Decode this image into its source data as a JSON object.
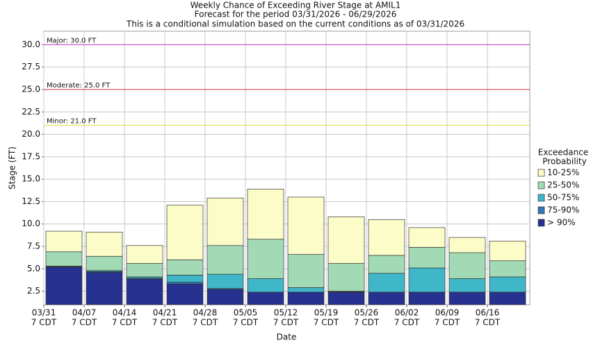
{
  "chart_data": {
    "type": "floating-stacked-bar",
    "title": "Weekly Chance of Exceeding River Stage at AMIL1",
    "subtitle": "Forecast for the period 03/31/2026 - 06/29/2026",
    "note": "This is a conditional simulation based on the current conditions as of 03/31/2026",
    "x_label": "Date",
    "y_label": "Stage (FT)",
    "categories": [
      "03/31",
      "04/07",
      "04/14",
      "04/21",
      "04/28",
      "05/05",
      "05/12",
      "05/19",
      "05/26",
      "06/02",
      "06/09",
      "06/16"
    ],
    "category_sublabel": "7 CDT",
    "legend_title": [
      "Exceedance",
      "Probability"
    ],
    "series": [
      {
        "name": "> 90%",
        "color": "#27318f",
        "values": [
          5.2,
          4.6,
          3.85,
          3.3,
          2.7,
          2.4,
          2.4,
          2.4,
          2.4,
          2.4,
          2.4,
          2.4
        ]
      },
      {
        "name": "75-90%",
        "color": "#2f78b5",
        "values": [
          5.25,
          4.7,
          3.95,
          3.5,
          2.8,
          2.4,
          2.4,
          2.45,
          2.4,
          2.4,
          2.4,
          2.4
        ]
      },
      {
        "name": "50-75%",
        "color": "#40b7c8",
        "values": [
          5.3,
          4.8,
          4.1,
          4.3,
          4.4,
          3.9,
          2.9,
          2.5,
          4.5,
          5.1,
          3.9,
          4.1
        ]
      },
      {
        "name": "25-50%",
        "color": "#a2dab5",
        "values": [
          6.9,
          6.4,
          5.6,
          6.0,
          7.6,
          8.3,
          6.6,
          5.6,
          6.5,
          7.4,
          6.8,
          5.9
        ]
      },
      {
        "name": "10-25%",
        "color": "#fcfcc8",
        "values": [
          9.2,
          9.1,
          7.6,
          12.1,
          12.9,
          13.9,
          13.0,
          10.8,
          10.5,
          9.6,
          8.5,
          8.1
        ]
      }
    ],
    "thresholds": [
      {
        "label": "Major: 30.0 FT",
        "value": 30,
        "color": "#c040c0"
      },
      {
        "label": "Moderate: 25.0 FT",
        "value": 25,
        "color": "#d03030"
      },
      {
        "label": "Minor: 21.0 FT",
        "value": 21,
        "color": "#e8d840"
      }
    ],
    "ylim": [
      1.0,
      31.5
    ],
    "yticks": [
      {
        "value": 2.5,
        "label": "2.5"
      },
      {
        "value": 5,
        "label": "5.0"
      },
      {
        "value": 7.5,
        "label": "7.5"
      },
      {
        "value": 10,
        "label": "10.0"
      },
      {
        "value": 12.5,
        "label": "12.5"
      },
      {
        "value": 15,
        "label": "15.0"
      },
      {
        "value": 17.5,
        "label": "17.5"
      },
      {
        "value": 20,
        "label": "20.0"
      },
      {
        "value": 22.5,
        "label": "22.5"
      },
      {
        "value": 25,
        "label": "25.0"
      },
      {
        "value": 27.5,
        "label": "27.5"
      },
      {
        "value": 30,
        "label": "30.0"
      }
    ],
    "grid": true
  }
}
